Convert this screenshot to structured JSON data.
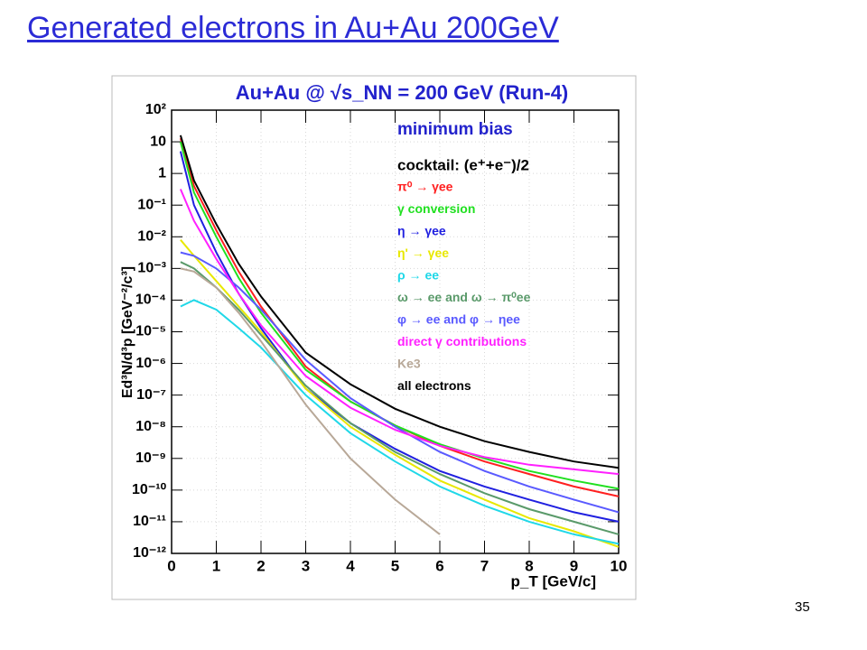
{
  "slide_title": "Generated electrons in Au+Au 200GeV",
  "page_number": "35",
  "chart_data": {
    "type": "line",
    "title": "Au+Au @ √s_NN = 200 GeV (Run-4)",
    "annotations": [
      "minimum bias",
      "cocktail: (e⁺+e⁻)/2"
    ],
    "xlabel": "p_T [GeV/c]",
    "ylabel": "Ed³N/d³p [GeV⁻²/c³]",
    "xlim": [
      0,
      10
    ],
    "xticks": [
      0,
      1,
      2,
      3,
      4,
      5,
      6,
      7,
      8,
      9,
      10
    ],
    "ylim": [
      1e-12,
      100
    ],
    "ylog": true,
    "grid": true,
    "yticks": [
      {
        "value": 100,
        "label": "10²"
      },
      10,
      1,
      {
        "value": 0.1,
        "label": "10⁻¹"
      },
      {
        "value": 0.01,
        "label": "10⁻²"
      },
      {
        "value": 0.001,
        "label": "10⁻³"
      },
      {
        "value": 0.0001,
        "label": "10⁻⁴"
      },
      {
        "value": 1e-05,
        "label": "10⁻⁵"
      },
      {
        "value": 1e-06,
        "label": "10⁻⁶"
      },
      {
        "value": 1e-07,
        "label": "10⁻⁷"
      },
      {
        "value": 1e-08,
        "label": "10⁻⁸"
      },
      {
        "value": 1e-09,
        "label": "10⁻⁹"
      },
      {
        "value": 1e-10,
        "label": "10⁻¹⁰"
      },
      {
        "value": 1e-11,
        "label": "10⁻¹¹"
      },
      {
        "value": 1e-12,
        "label": "10⁻¹²"
      }
    ],
    "x": [
      0.2,
      0.5,
      1,
      1.5,
      2,
      3,
      4,
      5,
      6,
      7,
      8,
      9,
      10
    ],
    "series": [
      {
        "name": "π⁰ → γee",
        "color": "#ff2020",
        "values": [
          13,
          0.4,
          0.016,
          0.0008,
          6.3e-05,
          8e-07,
          6.3e-08,
          1.1e-08,
          2.5e-09,
          8e-10,
          3.2e-10,
          1.3e-10,
          6.3e-11
        ]
      },
      {
        "name": "γ conversion",
        "color": "#20e020",
        "values": [
          10,
          0.25,
          0.01,
          0.0005,
          4e-05,
          6.3e-07,
          6.3e-08,
          1.1e-08,
          2.8e-09,
          1e-09,
          4e-10,
          2e-10,
          1.1e-10
        ]
      },
      {
        "name": "η → γee",
        "color": "#2020e0",
        "values": [
          5,
          0.1,
          0.0032,
          0.00016,
          1.3e-05,
          1.6e-07,
          1.3e-08,
          2e-09,
          4e-10,
          1.3e-10,
          5e-11,
          2e-11,
          1e-11
        ]
      },
      {
        "name": "η' → γee",
        "color": "#e8e800",
        "values": [
          0.008,
          0.0025,
          0.0004,
          6.3e-05,
          1e-05,
          1.6e-07,
          1e-08,
          1.3e-09,
          2e-10,
          5e-11,
          1.3e-11,
          5e-12,
          1.6e-12
        ]
      },
      {
        "name": "ρ → ee",
        "color": "#20d8e8",
        "values": [
          6.3e-05,
          0.0001,
          5e-05,
          1.3e-05,
          3.2e-06,
          1e-07,
          6.3e-09,
          8e-10,
          1.3e-10,
          3.2e-11,
          1e-11,
          4e-12,
          2e-12
        ]
      },
      {
        "name": "ω → ee and ω → π⁰ee",
        "color": "#5a9a6a",
        "values": [
          0.0016,
          0.001,
          0.00025,
          5e-05,
          8e-06,
          2e-07,
          1.3e-08,
          1.6e-09,
          3.2e-10,
          8e-11,
          2.5e-11,
          1e-11,
          4e-12
        ]
      },
      {
        "name": "φ → ee and φ → ηee",
        "color": "#5a5aff",
        "values": [
          0.0032,
          0.0025,
          0.001,
          0.00025,
          5e-05,
          1.3e-06,
          8e-08,
          1e-08,
          1.6e-09,
          4e-10,
          1.3e-10,
          5e-11,
          2e-11
        ]
      },
      {
        "name": "direct γ contributions",
        "color": "#ff20ff",
        "values": [
          0.32,
          0.032,
          0.002,
          0.00016,
          1.6e-05,
          4e-07,
          4e-08,
          8e-09,
          2.5e-09,
          1.1e-09,
          6.3e-10,
          4.5e-10,
          3.2e-10
        ]
      },
      {
        "name": "Ke3",
        "color": "#b8a898",
        "values": [
          0.001,
          0.0008,
          0.00025,
          4e-05,
          5e-06,
          5e-08,
          1e-09,
          5e-11,
          4e-12,
          null,
          null,
          null,
          null
        ]
      },
      {
        "name": "all electrons",
        "color": "#000000",
        "values": [
          16,
          0.6,
          0.025,
          0.0014,
          0.00013,
          2.2e-06,
          2.2e-07,
          3.7e-08,
          1e-08,
          3.5e-09,
          1.6e-09,
          8e-10,
          5e-10
        ]
      }
    ]
  }
}
